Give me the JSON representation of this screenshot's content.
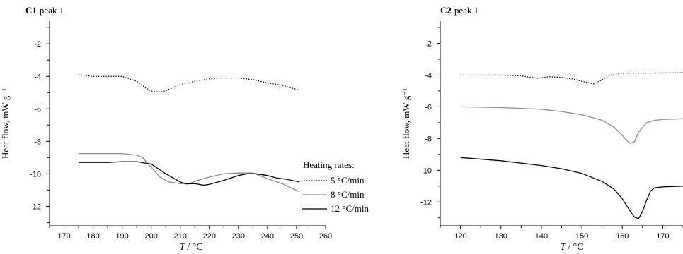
{
  "chart_data": [
    {
      "type": "line",
      "panel_prefix": "C1",
      "title": "peak 1",
      "xlabel_var": "T",
      "xlabel_unit": "/ °C",
      "ylabel": "Heat flow, mW g⁻¹",
      "xlim": [
        165,
        260
      ],
      "ylim": [
        -13.2,
        -0.6
      ],
      "xticks": [
        170,
        180,
        190,
        200,
        210,
        220,
        230,
        240,
        250,
        260
      ],
      "yticks": [
        -2,
        -4,
        -6,
        -8,
        -10,
        -12
      ],
      "legend": {
        "title": "Heating rates:",
        "placement": "bottom-right",
        "entries": [
          "5 °C/min",
          "8 °C/min",
          "12 °C/min"
        ]
      },
      "series": [
        {
          "name": "5 °C/min",
          "style": "dotted",
          "color": "#000000",
          "x": [
            175,
            180,
            185,
            190,
            195,
            198,
            200,
            202,
            204,
            206,
            210,
            215,
            220,
            225,
            230,
            235,
            240,
            245,
            250,
            251
          ],
          "y": [
            -3.9,
            -4.0,
            -4.0,
            -4.0,
            -4.3,
            -4.7,
            -4.9,
            -4.95,
            -4.95,
            -4.8,
            -4.5,
            -4.3,
            -4.15,
            -4.1,
            -4.1,
            -4.2,
            -4.4,
            -4.55,
            -4.8,
            -4.85
          ]
        },
        {
          "name": "8 °C/min",
          "style": "solid",
          "color": "#8a8a8a",
          "x": [
            175,
            180,
            185,
            190,
            195,
            197,
            200,
            203,
            206,
            210,
            213,
            216,
            220,
            225,
            230,
            235,
            240,
            245,
            248,
            251
          ],
          "y": [
            -8.75,
            -8.75,
            -8.75,
            -8.75,
            -8.85,
            -9.0,
            -9.6,
            -10.2,
            -10.5,
            -10.6,
            -10.6,
            -10.4,
            -10.2,
            -10.0,
            -9.95,
            -9.95,
            -10.3,
            -10.6,
            -10.85,
            -11.1
          ]
        },
        {
          "name": "12 °C/min",
          "style": "solid",
          "color": "#000000",
          "x": [
            175,
            180,
            185,
            190,
            195,
            200,
            205,
            210,
            212,
            215,
            218,
            220,
            225,
            230,
            233,
            236,
            240,
            243,
            247,
            251
          ],
          "y": [
            -9.3,
            -9.3,
            -9.3,
            -9.25,
            -9.25,
            -9.4,
            -10.0,
            -10.5,
            -10.62,
            -10.6,
            -10.7,
            -10.65,
            -10.4,
            -10.1,
            -10.0,
            -10.0,
            -10.1,
            -10.25,
            -10.35,
            -10.5
          ]
        }
      ]
    },
    {
      "type": "line",
      "panel_prefix": "C2",
      "title": "peak 1",
      "xlabel_var": "T",
      "xlabel_unit": "/ °C",
      "ylabel": "Heat flow, mW g⁻¹",
      "xlim": [
        115,
        175
      ],
      "ylim": [
        -13.5,
        -0.6
      ],
      "xticks": [
        120,
        130,
        140,
        150,
        160,
        170
      ],
      "yticks": [
        -2,
        -4,
        -6,
        -8,
        -10,
        -12
      ],
      "series": [
        {
          "name": "5 °C/min",
          "style": "dotted",
          "color": "#000000",
          "x": [
            120,
            130,
            135,
            139,
            142,
            145,
            148,
            150,
            152,
            153,
            155,
            157,
            160,
            165,
            170,
            175
          ],
          "y": [
            -4.0,
            -4.0,
            -4.05,
            -4.2,
            -4.1,
            -4.15,
            -4.25,
            -4.4,
            -4.5,
            -4.55,
            -4.3,
            -4.0,
            -3.9,
            -3.88,
            -3.87,
            -3.85
          ]
        },
        {
          "name": "8 °C/min",
          "style": "solid",
          "color": "#8a8a8a",
          "x": [
            120,
            130,
            140,
            145,
            150,
            155,
            158,
            160,
            161,
            162,
            163,
            164,
            166,
            168,
            170,
            175
          ],
          "y": [
            -6.0,
            -6.05,
            -6.15,
            -6.3,
            -6.5,
            -6.85,
            -7.3,
            -7.8,
            -8.1,
            -8.3,
            -8.2,
            -7.6,
            -7.0,
            -6.85,
            -6.8,
            -6.75
          ]
        },
        {
          "name": "12 °C/min",
          "style": "solid",
          "color": "#000000",
          "x": [
            120,
            130,
            140,
            145,
            150,
            155,
            158,
            160,
            162,
            163,
            164,
            165,
            166,
            167,
            168,
            170,
            173,
            175
          ],
          "y": [
            -9.2,
            -9.4,
            -9.7,
            -9.9,
            -10.2,
            -10.7,
            -11.2,
            -11.8,
            -12.6,
            -12.95,
            -13.05,
            -12.6,
            -11.9,
            -11.3,
            -11.1,
            -11.05,
            -11.02,
            -11.0
          ]
        }
      ]
    }
  ]
}
